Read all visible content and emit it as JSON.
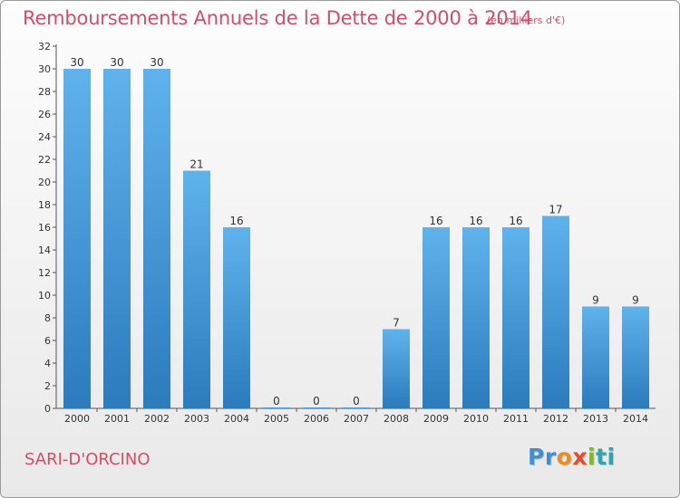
{
  "header": {
    "title": "Remboursements Annuels de la Dette de 2000 à 2014",
    "unit": "(en milliers d'€)"
  },
  "footer": {
    "commune": "SARI-D'ORCINO",
    "logo": [
      "Pr",
      "o",
      "x",
      "i",
      "ti"
    ]
  },
  "colors": {
    "title": "#d34e68",
    "bar_top": "#5fb3ec",
    "bar_bottom": "#2b7bbd"
  },
  "chart_data": {
    "type": "bar",
    "categories": [
      "2000",
      "2001",
      "2002",
      "2003",
      "2004",
      "2005",
      "2006",
      "2007",
      "2008",
      "2009",
      "2010",
      "2011",
      "2012",
      "2013",
      "2014"
    ],
    "values": [
      30,
      30,
      30,
      21,
      16,
      0,
      0,
      0,
      7,
      16,
      16,
      16,
      17,
      9,
      9
    ],
    "data_labels": [
      "30",
      "30",
      "30",
      "21",
      "16",
      "0",
      "0",
      "0",
      "7",
      "16",
      "16",
      "16",
      "17",
      "9",
      "9"
    ],
    "y_ticks": [
      0,
      2,
      4,
      6,
      8,
      10,
      12,
      14,
      16,
      18,
      20,
      22,
      24,
      26,
      28,
      30,
      32
    ],
    "ylim": [
      0,
      32
    ],
    "grid": false,
    "title": "Remboursements Annuels de la Dette de 2000 à 2014",
    "xlabel": "",
    "ylabel": ""
  }
}
